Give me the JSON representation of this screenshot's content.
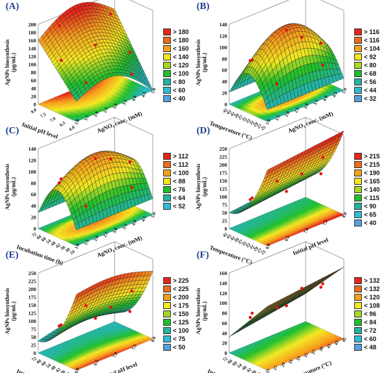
{
  "colors": {
    "red": "#e8241b",
    "orange": "#f5a11d",
    "yellow": "#f4e820",
    "green": "#1fbf2a",
    "teal": "#24b3a4",
    "cyan": "#2fbdd8",
    "point": "#e3140f"
  },
  "chart_data": [
    {
      "type": "surface3d",
      "panel_label": "(A)",
      "zlabel": [
        "AgNPs biosynthesis",
        "(μg/mL)"
      ],
      "xlabel": "Initial pH level",
      "ylabel": "AgNO₃ conc. (mM)",
      "z_ticks": [
        "0",
        "20",
        "40",
        "60",
        "80",
        "100",
        "120",
        "140",
        "160",
        "180",
        "200"
      ],
      "x_ticks": [
        "6.0",
        "6.5",
        "7.0",
        "7.5",
        "8.0"
      ],
      "y_ticks": [
        "1.0",
        "1.5",
        "2.0",
        "2.5",
        "3.0",
        "3.5",
        "4.0",
        "4.5",
        "5.0"
      ],
      "legend": [
        "> 180",
        "< 180",
        "< 160",
        "< 140",
        "< 120",
        "< 100",
        "< 80",
        "< 60",
        "< 40"
      ],
      "legend_colors": [
        "#e8241b",
        "#f06a1c",
        "#f5a11d",
        "#f4e820",
        "#a8d820",
        "#1fbf2a",
        "#24b3a4",
        "#2fbdd8",
        "#56a0e0"
      ]
    },
    {
      "type": "surface3d",
      "panel_label": "(B)",
      "zlabel": [
        "AgNPs biosynthesis",
        "(μg/mL)"
      ],
      "xlabel": "Temperature (°C)",
      "ylabel": "AgNO₃ conc. (mM)",
      "z_ticks": [
        "0",
        "20",
        "40",
        "60",
        "80",
        "100",
        "120",
        "140"
      ],
      "x_ticks": [
        "25",
        "27",
        "29",
        "31",
        "33",
        "35",
        "37",
        "39",
        "41",
        "43",
        "45"
      ],
      "y_ticks": [
        "1.0",
        "1.5",
        "2.0",
        "2.5",
        "3.0",
        "3.5",
        "4.0",
        "4.5",
        "5.0"
      ],
      "legend": [
        "> 116",
        "< 116",
        "< 104",
        "< 92",
        "< 80",
        "< 68",
        "< 56",
        "< 44",
        "< 32"
      ],
      "legend_colors": [
        "#e8241b",
        "#f06a1c",
        "#f5a11d",
        "#f4e820",
        "#a8d820",
        "#1fbf2a",
        "#24b3a4",
        "#2fbdd8",
        "#56a0e0"
      ]
    },
    {
      "type": "surface3d",
      "panel_label": "(C)",
      "zlabel": [
        "AgNPs biosynthesis",
        "(μg/mL)"
      ],
      "xlabel": "Incubation time (h)",
      "ylabel": "AgNO₃ conc. (mM)",
      "z_ticks": [
        "0",
        "20",
        "40",
        "60",
        "80",
        "100",
        "120",
        "140"
      ],
      "x_ticks": [
        "24",
        "30",
        "36",
        "42",
        "48",
        "54",
        "60",
        "66",
        "72"
      ],
      "y_ticks": [
        "1.0",
        "1.5",
        "2.0",
        "2.5",
        "3.0",
        "3.5",
        "4.0",
        "4.5",
        "5.0"
      ],
      "legend": [
        "> 112",
        "< 112",
        "< 100",
        "< 88",
        "< 76",
        "< 64",
        "< 52"
      ],
      "legend_colors": [
        "#e8241b",
        "#f06a1c",
        "#f5a11d",
        "#f4e820",
        "#1fbf2a",
        "#24b3a4",
        "#2fbdd8"
      ]
    },
    {
      "type": "surface3d",
      "panel_label": "(D)",
      "zlabel": [
        "AgNPs biosynthesis",
        "(μg/mL)"
      ],
      "xlabel": "Temperature (°C)",
      "ylabel": "Initial pH level",
      "z_ticks": [
        "0",
        "25",
        "50",
        "75",
        "100",
        "125",
        "150",
        "175",
        "200",
        "225",
        "250"
      ],
      "x_ticks": [
        "25",
        "27",
        "29",
        "31",
        "33",
        "35",
        "37",
        "39",
        "41",
        "43",
        "45"
      ],
      "y_ticks": [
        "6.0",
        "6.5",
        "7.0",
        "7.5",
        "8.0"
      ],
      "legend": [
        "> 215",
        "< 215",
        "< 190",
        "< 165",
        "< 140",
        "< 115",
        "< 90",
        "< 65",
        "< 40"
      ],
      "legend_colors": [
        "#e8241b",
        "#f06a1c",
        "#f5a11d",
        "#f4e820",
        "#a8d820",
        "#1fbf2a",
        "#24b3a4",
        "#2fbdd8",
        "#56a0e0"
      ]
    },
    {
      "type": "surface3d",
      "panel_label": "(E)",
      "zlabel": [
        "AgNPs biosynthesis",
        "(μg/mL)"
      ],
      "xlabel": "Incubation time (h)",
      "ylabel": "Initial pH level",
      "z_ticks": [
        "0",
        "25",
        "50",
        "75",
        "100",
        "125",
        "150",
        "175",
        "200",
        "225",
        "250"
      ],
      "x_ticks": [
        "24",
        "30",
        "36",
        "42",
        "48",
        "54",
        "60",
        "66",
        "72"
      ],
      "y_ticks": [
        "6.0",
        "6.5",
        "7.0",
        "7.5",
        "8.0"
      ],
      "legend": [
        "> 225",
        "< 225",
        "< 200",
        "< 175",
        "< 150",
        "< 125",
        "< 100",
        "< 75",
        "< 50"
      ],
      "legend_colors": [
        "#e8241b",
        "#f06a1c",
        "#f5a11d",
        "#f4e820",
        "#a8d820",
        "#1fbf2a",
        "#24b3a4",
        "#2fbdd8",
        "#56a0e0"
      ]
    },
    {
      "type": "surface3d",
      "panel_label": "(F)",
      "zlabel": [
        "AgNPs biosynthesis",
        "(μg/mL)"
      ],
      "xlabel": "Incubation time (h)",
      "ylabel": "Temperature (°C)",
      "z_ticks": [
        "0",
        "20",
        "40",
        "60",
        "80",
        "100",
        "120",
        "140",
        "160"
      ],
      "x_ticks": [
        "24",
        "30",
        "36",
        "42",
        "48",
        "54",
        "60",
        "66",
        "72"
      ],
      "y_ticks": [
        "25",
        "27",
        "29",
        "31",
        "33",
        "35",
        "37",
        "39",
        "41",
        "43",
        "45"
      ],
      "legend": [
        "> 132",
        "< 132",
        "< 120",
        "< 108",
        "< 96",
        "< 84",
        "< 72",
        "< 60",
        "< 48"
      ],
      "legend_colors": [
        "#e8241b",
        "#f06a1c",
        "#f5a11d",
        "#f4e820",
        "#a8d820",
        "#1fbf2a",
        "#24b3a4",
        "#2fbdd8",
        "#56a0e0"
      ]
    }
  ]
}
